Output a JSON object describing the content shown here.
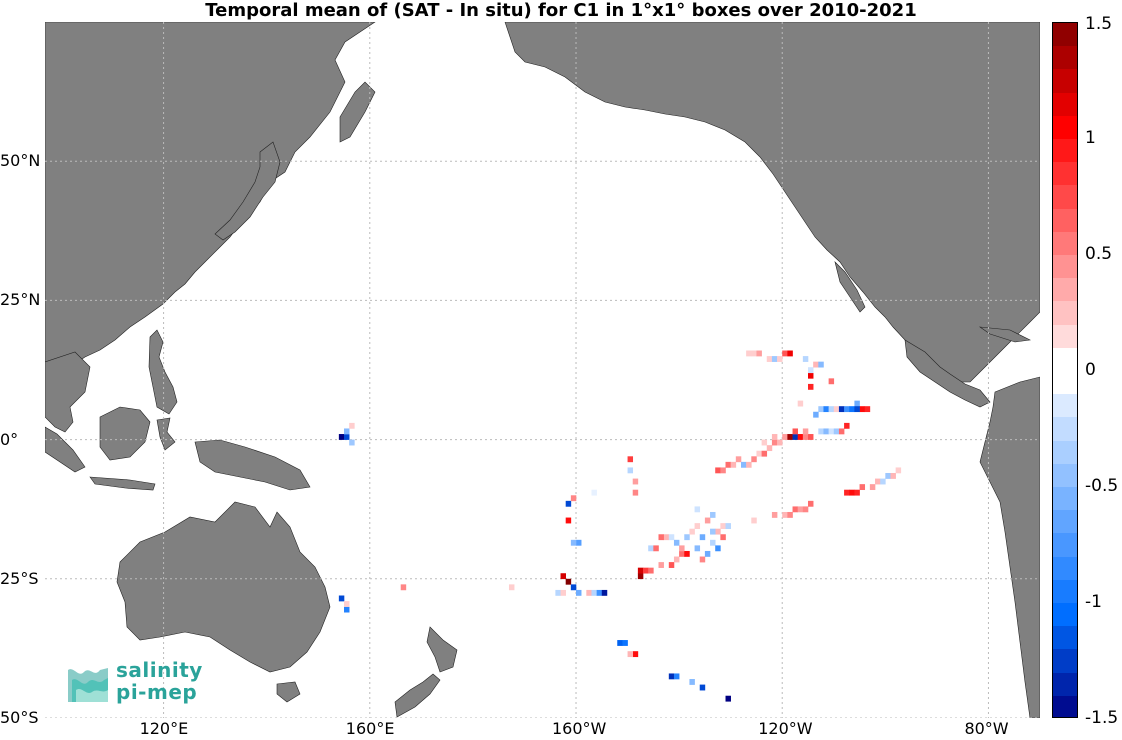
{
  "title": "Temporal mean of (SAT - In situ) for C1 in 1°x1° boxes over 2010-2021",
  "map": {
    "projection": "equirectangular",
    "lon_range": [
      97,
      290
    ],
    "lat_range": [
      -50,
      75
    ],
    "land_color": "#808080",
    "ocean_color": "#ffffff",
    "grid": "dotted",
    "lat_ticks": [
      {
        "label": "50°N",
        "lat": 50
      },
      {
        "label": "25°N",
        "lat": 25
      },
      {
        "label": "0°",
        "lat": 0
      },
      {
        "label": "25°S",
        "lat": -25
      },
      {
        "label": "50°S",
        "lat": -50
      }
    ],
    "lon_ticks": [
      {
        "label": "120°E",
        "lon": 120
      },
      {
        "label": "160°E",
        "lon": 160
      },
      {
        "label": "160°W",
        "lon": 200
      },
      {
        "label": "120°W",
        "lon": 240
      },
      {
        "label": "80°W",
        "lon": 280
      }
    ]
  },
  "colorbar": {
    "min": -1.5,
    "max": 1.5,
    "ticks": [
      {
        "label": "1.5",
        "value": 1.5
      },
      {
        "label": "1",
        "value": 1
      },
      {
        "label": "0.5",
        "value": 0.5
      },
      {
        "label": "0",
        "value": 0
      },
      {
        "label": "-0.5",
        "value": -0.5
      },
      {
        "label": "-1",
        "value": -1
      },
      {
        "label": "-1.5",
        "value": -1.5
      }
    ]
  },
  "logo": {
    "line1": "salinity",
    "line2": "pi-mep"
  },
  "observations": [
    {
      "lon": 154,
      "lat": 0,
      "v": -1.5
    },
    {
      "lon": 155,
      "lat": 0,
      "v": -1.2
    },
    {
      "lon": 155,
      "lat": 1,
      "v": -0.5
    },
    {
      "lon": 156,
      "lat": 2,
      "v": 0.2
    },
    {
      "lon": 156,
      "lat": -1,
      "v": -0.4
    },
    {
      "lon": 154,
      "lat": -29,
      "v": -1.2
    },
    {
      "lon": 155,
      "lat": -31,
      "v": -0.9
    },
    {
      "lon": 155,
      "lat": -30,
      "v": 0.2
    },
    {
      "lon": 166,
      "lat": -27,
      "v": 0.5
    },
    {
      "lon": 187,
      "lat": -27,
      "v": 0.2
    },
    {
      "lon": 198,
      "lat": -12,
      "v": -1.2
    },
    {
      "lon": 199,
      "lat": -11,
      "v": 0.5
    },
    {
      "lon": 198,
      "lat": -15,
      "v": 1.0
    },
    {
      "lon": 200,
      "lat": -19,
      "v": -0.7
    },
    {
      "lon": 199,
      "lat": -19,
      "v": -0.5
    },
    {
      "lon": 203,
      "lat": -10,
      "v": -0.1
    },
    {
      "lon": 197,
      "lat": -25,
      "v": 1.2
    },
    {
      "lon": 198,
      "lat": -26,
      "v": 1.5
    },
    {
      "lon": 199,
      "lat": -27,
      "v": -1.2
    },
    {
      "lon": 200,
      "lat": -28,
      "v": -0.6
    },
    {
      "lon": 196,
      "lat": -28,
      "v": -0.3
    },
    {
      "lon": 197,
      "lat": -28,
      "v": 0.2
    },
    {
      "lon": 202,
      "lat": -28,
      "v": 0.3
    },
    {
      "lon": 203,
      "lat": -28,
      "v": -0.3
    },
    {
      "lon": 204,
      "lat": -28,
      "v": -0.8
    },
    {
      "lon": 205,
      "lat": -28,
      "v": -1.4
    },
    {
      "lon": 210,
      "lat": -4,
      "v": 0.8
    },
    {
      "lon": 210,
      "lat": -6,
      "v": -0.3
    },
    {
      "lon": 211,
      "lat": -8,
      "v": 0.4
    },
    {
      "lon": 211,
      "lat": -10,
      "v": 0.5
    },
    {
      "lon": 208,
      "lat": -37,
      "v": -1.1
    },
    {
      "lon": 209,
      "lat": -37,
      "v": -1.0
    },
    {
      "lon": 211,
      "lat": -39,
      "v": 1.0
    },
    {
      "lon": 210,
      "lat": -39,
      "v": 0.3
    },
    {
      "lon": 218,
      "lat": -43,
      "v": -1.3
    },
    {
      "lon": 219,
      "lat": -43,
      "v": -0.9
    },
    {
      "lon": 222,
      "lat": -44,
      "v": -0.5
    },
    {
      "lon": 224,
      "lat": -45,
      "v": -1.2
    },
    {
      "lon": 229,
      "lat": -47,
      "v": -1.5
    },
    {
      "lon": 212,
      "lat": -25,
      "v": 1.4
    },
    {
      "lon": 212,
      "lat": -24,
      "v": 1.2
    },
    {
      "lon": 213,
      "lat": -24,
      "v": 0.8
    },
    {
      "lon": 214,
      "lat": -24,
      "v": 0.6
    },
    {
      "lon": 216,
      "lat": -23,
      "v": 0.4
    },
    {
      "lon": 218,
      "lat": -23,
      "v": 0.7
    },
    {
      "lon": 219,
      "lat": -22,
      "v": 0.3
    },
    {
      "lon": 220,
      "lat": -21,
      "v": 0.6
    },
    {
      "lon": 221,
      "lat": -21,
      "v": 1.0
    },
    {
      "lon": 217,
      "lat": -18,
      "v": 0.3
    },
    {
      "lon": 218,
      "lat": -18,
      "v": -0.2
    },
    {
      "lon": 219,
      "lat": -19,
      "v": -0.5
    },
    {
      "lon": 220,
      "lat": -20,
      "v": 0.4
    },
    {
      "lon": 221,
      "lat": -18,
      "v": -0.4
    },
    {
      "lon": 222,
      "lat": -17,
      "v": 0.2
    },
    {
      "lon": 223,
      "lat": -20,
      "v": -0.5
    },
    {
      "lon": 224,
      "lat": -22,
      "v": 0.5
    },
    {
      "lon": 225,
      "lat": -21,
      "v": -0.6
    },
    {
      "lon": 226,
      "lat": -19,
      "v": -0.3
    },
    {
      "lon": 227,
      "lat": -20,
      "v": -0.8
    },
    {
      "lon": 228,
      "lat": -18,
      "v": 0.6
    },
    {
      "lon": 227,
      "lat": -17,
      "v": 0.3
    },
    {
      "lon": 223,
      "lat": -16,
      "v": 0.2
    },
    {
      "lon": 224,
      "lat": -18,
      "v": -0.6
    },
    {
      "lon": 226,
      "lat": -17,
      "v": -0.4
    },
    {
      "lon": 225,
      "lat": -15,
      "v": 0.4
    },
    {
      "lon": 226,
      "lat": -14,
      "v": -0.4
    },
    {
      "lon": 228,
      "lat": -16,
      "v": 0.2
    },
    {
      "lon": 229,
      "lat": -16,
      "v": -0.3
    },
    {
      "lon": 216,
      "lat": -18,
      "v": 0.6
    },
    {
      "lon": 214,
      "lat": -20,
      "v": -0.3
    },
    {
      "lon": 215,
      "lat": -20,
      "v": 0.6
    },
    {
      "lon": 223,
      "lat": -13,
      "v": -0.2
    },
    {
      "lon": 234,
      "lat": -15,
      "v": 0.2
    },
    {
      "lon": 238,
      "lat": -14,
      "v": 0.4
    },
    {
      "lon": 240,
      "lat": -14,
      "v": 0.3
    },
    {
      "lon": 241,
      "lat": -14,
      "v": 0.5
    },
    {
      "lon": 242,
      "lat": -13,
      "v": 0.6
    },
    {
      "lon": 243,
      "lat": -13,
      "v": 0.4
    },
    {
      "lon": 244,
      "lat": -13,
      "v": 0.5
    },
    {
      "lon": 245,
      "lat": -12,
      "v": 0.6
    },
    {
      "lon": 252,
      "lat": -10,
      "v": 0.9
    },
    {
      "lon": 253,
      "lat": -10,
      "v": 1.0
    },
    {
      "lon": 254,
      "lat": -10,
      "v": 0.9
    },
    {
      "lon": 255,
      "lat": -9,
      "v": 0.6
    },
    {
      "lon": 257,
      "lat": -9,
      "v": 0.4
    },
    {
      "lon": 258,
      "lat": -8,
      "v": 0.3
    },
    {
      "lon": 259,
      "lat": -8,
      "v": -0.3
    },
    {
      "lon": 260,
      "lat": -7,
      "v": -0.4
    },
    {
      "lon": 261,
      "lat": -7,
      "v": 0.3
    },
    {
      "lon": 262,
      "lat": -6,
      "v": 0.2
    },
    {
      "lon": 227,
      "lat": -6,
      "v": 0.7
    },
    {
      "lon": 228,
      "lat": -6,
      "v": 0.5
    },
    {
      "lon": 229,
      "lat": -5,
      "v": 0.6
    },
    {
      "lon": 230,
      "lat": -5,
      "v": 0.3
    },
    {
      "lon": 231,
      "lat": -4,
      "v": 0.4
    },
    {
      "lon": 232,
      "lat": -5,
      "v": -0.5
    },
    {
      "lon": 233,
      "lat": -5,
      "v": 0.3
    },
    {
      "lon": 234,
      "lat": -4,
      "v": 0.5
    },
    {
      "lon": 235,
      "lat": -3,
      "v": 0.2
    },
    {
      "lon": 236,
      "lat": -3,
      "v": 0.6
    },
    {
      "lon": 237,
      "lat": -2,
      "v": 0.3
    },
    {
      "lon": 238,
      "lat": -1,
      "v": 0.5
    },
    {
      "lon": 239,
      "lat": -1,
      "v": 0.3
    },
    {
      "lon": 240,
      "lat": 0,
      "v": 0.4
    },
    {
      "lon": 241,
      "lat": 0,
      "v": 1.4
    },
    {
      "lon": 242,
      "lat": 0,
      "v": -1.3
    },
    {
      "lon": 243,
      "lat": 0,
      "v": 1.0
    },
    {
      "lon": 244,
      "lat": 0,
      "v": 0.5
    },
    {
      "lon": 245,
      "lat": 0,
      "v": 0.7
    },
    {
      "lon": 244,
      "lat": 1,
      "v": 0.4
    },
    {
      "lon": 242,
      "lat": 1,
      "v": 0.7
    },
    {
      "lon": 238,
      "lat": 0,
      "v": 0.3
    },
    {
      "lon": 236,
      "lat": -1,
      "v": 0.2
    },
    {
      "lon": 247,
      "lat": 1,
      "v": -0.3
    },
    {
      "lon": 248,
      "lat": 1,
      "v": -0.5
    },
    {
      "lon": 249,
      "lat": 1,
      "v": -0.2
    },
    {
      "lon": 250,
      "lat": 1,
      "v": -0.4
    },
    {
      "lon": 251,
      "lat": 1,
      "v": 0.6
    },
    {
      "lon": 252,
      "lat": 2,
      "v": 0.9
    },
    {
      "lon": 246,
      "lat": 4,
      "v": -0.6
    },
    {
      "lon": 247,
      "lat": 5,
      "v": -0.4
    },
    {
      "lon": 248,
      "lat": 5,
      "v": -0.9
    },
    {
      "lon": 249,
      "lat": 5,
      "v": -0.3
    },
    {
      "lon": 250,
      "lat": 5,
      "v": 0.2
    },
    {
      "lon": 251,
      "lat": 5,
      "v": -1.3
    },
    {
      "lon": 252,
      "lat": 5,
      "v": -0.8
    },
    {
      "lon": 253,
      "lat": 5,
      "v": -1.0
    },
    {
      "lon": 254,
      "lat": 6,
      "v": -0.6
    },
    {
      "lon": 255,
      "lat": 5,
      "v": 1.0
    },
    {
      "lon": 256,
      "lat": 5,
      "v": 0.9
    },
    {
      "lon": 254,
      "lat": 5,
      "v": -1.2
    },
    {
      "lon": 243,
      "lat": 6,
      "v": 0.2
    },
    {
      "lon": 245,
      "lat": 9,
      "v": 0.9
    },
    {
      "lon": 245,
      "lat": 11,
      "v": 1.1
    },
    {
      "lon": 249,
      "lat": 10,
      "v": 0.6
    },
    {
      "lon": 233,
      "lat": 15,
      "v": 0.2
    },
    {
      "lon": 234,
      "lat": 15,
      "v": 0.2
    },
    {
      "lon": 235,
      "lat": 15,
      "v": 0.4
    },
    {
      "lon": 237,
      "lat": 14,
      "v": 0.2
    },
    {
      "lon": 238,
      "lat": 14,
      "v": -0.4
    },
    {
      "lon": 239,
      "lat": 14,
      "v": 0.2
    },
    {
      "lon": 240,
      "lat": 15,
      "v": 0.7
    },
    {
      "lon": 241,
      "lat": 15,
      "v": 1.1
    },
    {
      "lon": 244,
      "lat": 14,
      "v": -0.3
    },
    {
      "lon": 245,
      "lat": 12,
      "v": -0.2
    },
    {
      "lon": 246,
      "lat": 13,
      "v": 0.3
    },
    {
      "lon": 247,
      "lat": 13,
      "v": -0.5
    }
  ]
}
